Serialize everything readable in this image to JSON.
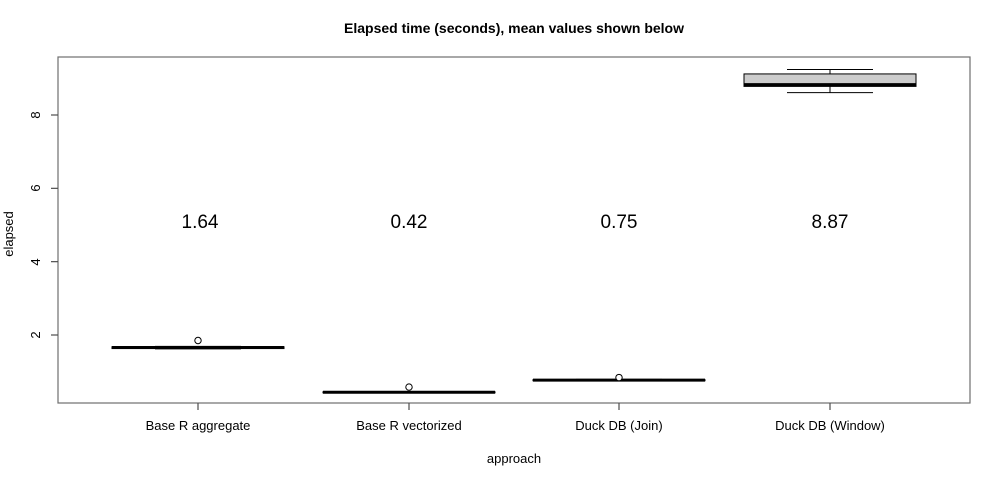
{
  "title": "Elapsed time (seconds), mean values shown below",
  "x_axis_label": "approach",
  "y_axis_label": "elapsed",
  "chart_data": {
    "type": "boxplot",
    "title": "Elapsed time (seconds), mean values shown below",
    "xlabel": "approach",
    "ylabel": "elapsed",
    "categories": [
      "Base R aggregate",
      "Base R vectorized",
      "Duck DB (Join)",
      "Duck DB (Window)"
    ],
    "y_ticks": [
      2,
      4,
      6,
      8
    ],
    "ylim": [
      0.3,
      9.5
    ],
    "grid": false,
    "legend": "none",
    "colors": {
      "frame": "#6e6e6e",
      "axis": "#4d4d4d",
      "line": "#000000",
      "box_fill": "#cccccc",
      "outlier_fill": "#ffffff"
    },
    "series": [
      {
        "name": "Base R aggregate",
        "mean": 1.64,
        "mean_label": "1.64",
        "median": 1.66,
        "q1": 1.63,
        "q3": 1.68,
        "whisker_low": 1.62,
        "whisker_high": 1.69,
        "outliers": [
          1.85
        ]
      },
      {
        "name": "Base R vectorized",
        "mean": 0.42,
        "mean_label": "0.42",
        "median": 0.44,
        "q1": 0.43,
        "q3": 0.45,
        "whisker_low": 0.42,
        "whisker_high": 0.46,
        "outliers": [
          0.58
        ]
      },
      {
        "name": "Duck DB (Join)",
        "mean": 0.75,
        "mean_label": "0.75",
        "median": 0.77,
        "q1": 0.76,
        "q3": 0.78,
        "whisker_low": 0.75,
        "whisker_high": 0.79,
        "outliers": [
          0.84
        ]
      },
      {
        "name": "Duck DB (Window)",
        "mean": 8.87,
        "mean_label": "8.87",
        "median": 8.83,
        "q1": 8.78,
        "q3": 9.12,
        "whisker_low": 8.61,
        "whisker_high": 9.24,
        "outliers": []
      }
    ]
  }
}
